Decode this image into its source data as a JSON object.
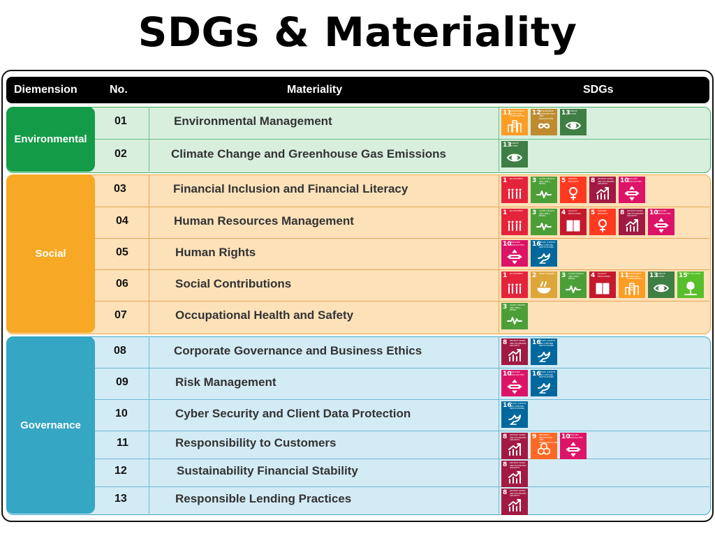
{
  "title": "SDGs & Materiality",
  "header": {
    "dimension": "Diemension",
    "no": "No.",
    "materiality": "Materiality",
    "sdgs": "SDGs"
  },
  "dimensions": [
    {
      "name": "Environmental",
      "color": "#149B48"
    },
    {
      "name": "Social",
      "color": "#F7A825"
    },
    {
      "name": "Governance",
      "color": "#35A6C4"
    }
  ],
  "rows": [
    {
      "no": "01",
      "materiality": "Environmental Management",
      "sdgs": [
        11,
        12,
        13
      ]
    },
    {
      "no": "02",
      "materiality": "Climate Change and Greenhouse Gas Emissions",
      "sdgs": [
        13
      ]
    },
    {
      "no": "03",
      "materiality": "Financial Inclusion and Financial Literacy",
      "sdgs": [
        1,
        3,
        5,
        8,
        10
      ]
    },
    {
      "no": "04",
      "materiality": "Human Resources Management",
      "sdgs": [
        1,
        3,
        4,
        5,
        8,
        10
      ]
    },
    {
      "no": "05",
      "materiality": "Human Rights",
      "sdgs": [
        10,
        16
      ]
    },
    {
      "no": "06",
      "materiality": "Social Contributions",
      "sdgs": [
        1,
        2,
        3,
        4,
        11,
        13,
        15
      ]
    },
    {
      "no": "07",
      "materiality": "Occupational Health and Safety",
      "sdgs": [
        3
      ]
    },
    {
      "no": "08",
      "materiality": "Corporate Governance and Business Ethics",
      "sdgs": [
        8,
        16
      ]
    },
    {
      "no": "09",
      "materiality": "Risk Management",
      "sdgs": [
        10,
        16
      ]
    },
    {
      "no": "10",
      "materiality": "Cyber Security and Client Data Protection",
      "sdgs": [
        16
      ]
    },
    {
      "no": "11",
      "materiality": "Responsibility to Customers",
      "sdgs": [
        8,
        9,
        10
      ]
    },
    {
      "no": "12",
      "materiality": "Sustainability Financial Stability",
      "sdgs": [
        8
      ]
    },
    {
      "no": "13",
      "materiality": "Responsible Lending Practices",
      "sdgs": [
        8
      ]
    }
  ],
  "sdg_icons": {
    "1": {
      "color": "#E5243B",
      "label": "NO POVERTY",
      "icon": "people-icon"
    },
    "2": {
      "color": "#DDA63A",
      "label": "ZERO HUNGER",
      "icon": "bowl-icon"
    },
    "3": {
      "color": "#4C9F38",
      "label": "GOOD HEALTH AND WELL-BEING",
      "icon": "heartbeat-icon"
    },
    "4": {
      "color": "#C5192D",
      "label": "QUALITY EDUCATION",
      "icon": "book-icon"
    },
    "5": {
      "color": "#FF3A21",
      "label": "GENDER EQUALITY",
      "icon": "gender-icon"
    },
    "8": {
      "color": "#A21942",
      "label": "DECENT WORK AND ECONOMIC GROWTH",
      "icon": "growth-chart-icon"
    },
    "9": {
      "color": "#FD6925",
      "label": "INDUSTRY, INNOVATION AND INFRASTRUCTURE",
      "icon": "cubes-icon"
    },
    "10": {
      "color": "#DD1367",
      "label": "REDUCED INEQUALITIES",
      "icon": "equality-arrows-icon"
    },
    "11": {
      "color": "#FD9D24",
      "label": "SUSTAINABLE CITIES AND COMMUNITIES",
      "icon": "city-icon"
    },
    "12": {
      "color": "#BF8B2E",
      "label": "RESPONSIBLE CONSUMPTION AND PRODUCTION",
      "icon": "infinity-icon"
    },
    "13": {
      "color": "#3F7E44",
      "label": "CLIMATE ACTION",
      "icon": "eye-globe-icon"
    },
    "15": {
      "color": "#56C02B",
      "label": "LIFE ON LAND",
      "icon": "tree-icon"
    },
    "16": {
      "color": "#00689D",
      "label": "PEACE, JUSTICE AND STRONG INSTITUTIONS",
      "icon": "dove-icon"
    }
  }
}
